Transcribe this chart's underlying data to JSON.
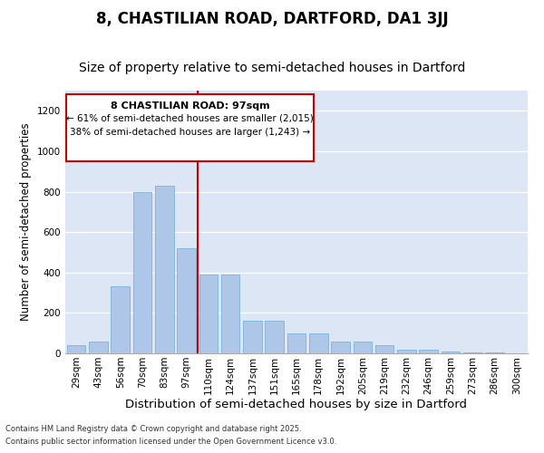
{
  "title1": "8, CHASTILIAN ROAD, DARTFORD, DA1 3JJ",
  "title2": "Size of property relative to semi-detached houses in Dartford",
  "xlabel": "Distribution of semi-detached houses by size in Dartford",
  "ylabel": "Number of semi-detached properties",
  "categories": [
    "29sqm",
    "43sqm",
    "56sqm",
    "70sqm",
    "83sqm",
    "97sqm",
    "110sqm",
    "124sqm",
    "137sqm",
    "151sqm",
    "165sqm",
    "178sqm",
    "192sqm",
    "205sqm",
    "219sqm",
    "232sqm",
    "246sqm",
    "259sqm",
    "273sqm",
    "286sqm",
    "300sqm"
  ],
  "values": [
    40,
    60,
    330,
    800,
    830,
    520,
    390,
    390,
    160,
    160,
    100,
    100,
    60,
    60,
    40,
    20,
    20,
    10,
    5,
    5,
    2
  ],
  "bar_color": "#aec6e8",
  "bar_edge_color": "#6baed6",
  "vline_color": "#cc0000",
  "annotation_title": "8 CHASTILIAN ROAD: 97sqm",
  "annotation_line1": "← 61% of semi-detached houses are smaller (2,015)",
  "annotation_line2": "38% of semi-detached houses are larger (1,243) →",
  "annotation_box_color": "#cc0000",
  "background_color": "#dce6f5",
  "footer1": "Contains HM Land Registry data © Crown copyright and database right 2025.",
  "footer2": "Contains public sector information licensed under the Open Government Licence v3.0.",
  "ylim": [
    0,
    1300
  ],
  "yticks": [
    0,
    200,
    400,
    600,
    800,
    1000,
    1200
  ],
  "title1_fontsize": 12,
  "title2_fontsize": 10,
  "xlabel_fontsize": 9.5,
  "ylabel_fontsize": 8.5,
  "tick_fontsize": 7.5
}
